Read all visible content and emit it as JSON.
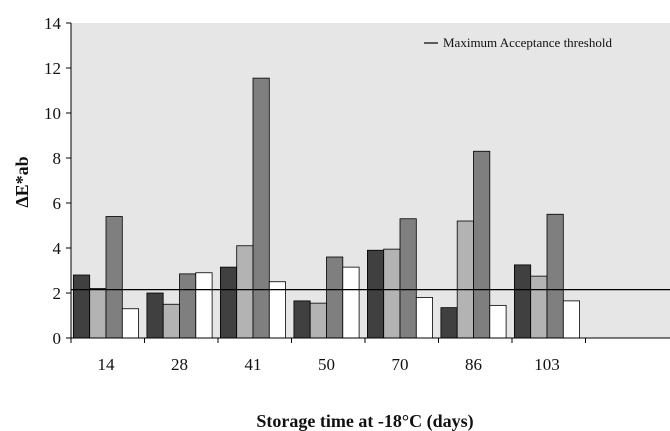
{
  "chart_data": {
    "type": "bar",
    "categories": [
      "14",
      "28",
      "41",
      "50",
      "70",
      "86",
      "103"
    ],
    "series": [
      {
        "values": [
          2.8,
          2.0,
          3.15,
          1.65,
          3.9,
          1.35,
          3.25
        ],
        "color": "#404040"
      },
      {
        "values": [
          2.2,
          1.5,
          4.1,
          1.55,
          3.95,
          5.2,
          2.75
        ],
        "color": "#b3b3b3"
      },
      {
        "values": [
          5.4,
          2.85,
          11.55,
          3.6,
          5.3,
          8.3,
          5.5
        ],
        "color": "#7f7f7f"
      },
      {
        "values": [
          1.3,
          2.9,
          2.5,
          3.15,
          1.8,
          1.45,
          1.65
        ],
        "color": "#ffffff"
      }
    ],
    "threshold": {
      "value": 2.15,
      "label": "Maximum Acceptance threshold"
    },
    "xlabel": "Storage time at -18°C (days)",
    "ylabel": "ΔE*ab",
    "ylim": [
      0,
      14
    ],
    "yticks": [
      "0",
      "2",
      "4",
      "6",
      "8",
      "10",
      "12",
      "14"
    ],
    "grid": false,
    "legend_position": "top-right",
    "colors": {
      "plot_background": "#e6e6e6",
      "axis": "#000000"
    }
  }
}
